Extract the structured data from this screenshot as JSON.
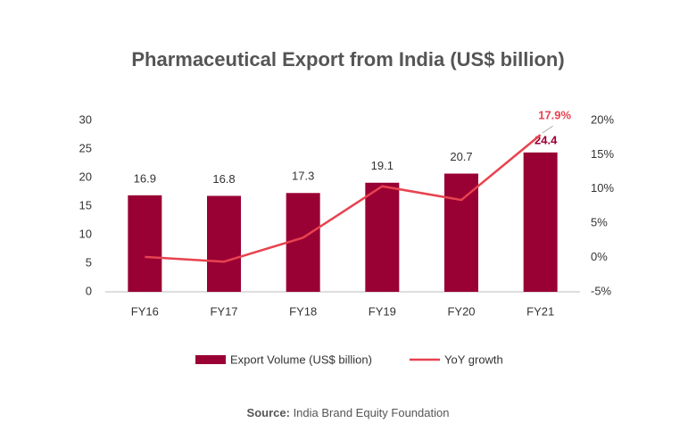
{
  "chart_data": {
    "type": "bar-line",
    "title": "Pharmaceutical Export from India (US$ billion)",
    "categories": [
      "FY16",
      "FY17",
      "FY18",
      "FY19",
      "FY20",
      "FY21"
    ],
    "series": [
      {
        "name": "Export Volume (US$ billion)",
        "type": "bar",
        "color": "#990033",
        "values": [
          16.9,
          16.8,
          17.3,
          19.1,
          20.7,
          24.4
        ]
      },
      {
        "name": "YoY growth",
        "type": "line",
        "axis": "y2",
        "color": "#e8424f",
        "values": [
          0.1,
          -0.6,
          2.9,
          10.4,
          8.4,
          17.9
        ],
        "value_labels": [
          null,
          null,
          null,
          null,
          null,
          "17.9%"
        ]
      }
    ],
    "ylim": [
      0,
      30
    ],
    "yticks": [
      0,
      5,
      10,
      15,
      20,
      25,
      30
    ],
    "y2lim": [
      -5,
      20
    ],
    "y2ticks": [
      {
        "value": -5,
        "label": "-5%"
      },
      {
        "value": 0,
        "label": "0%"
      },
      {
        "value": 5,
        "label": "5%"
      },
      {
        "value": 10,
        "label": "10%"
      },
      {
        "value": 15,
        "label": "15%"
      },
      {
        "value": 20,
        "label": "20%"
      }
    ],
    "grid": false,
    "legend": "bottom",
    "source": {
      "label": "Source:",
      "text": "India Brand Equity Foundation"
    }
  }
}
